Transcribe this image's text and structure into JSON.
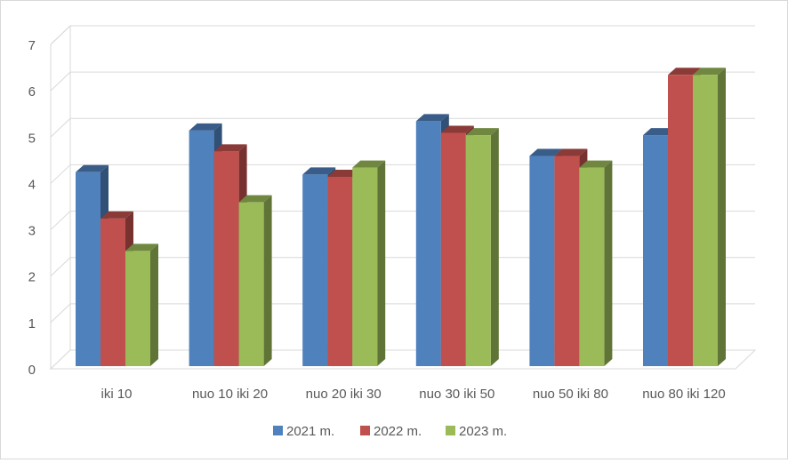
{
  "chart_data": {
    "type": "bar",
    "style": "3d-clustered-column",
    "title": "",
    "xlabel": "",
    "ylabel": "",
    "categories": [
      "iki 10",
      "nuo 10 iki 20",
      "nuo 20 iki 30",
      "nuo 30 iki 50",
      "nuo 50 iki 80",
      "nuo 80 iki 120"
    ],
    "series": [
      {
        "name": "2021 m.",
        "color": "#4f81bd",
        "values": [
          4.3,
          5.2,
          4.25,
          5.4,
          4.65,
          5.1
        ]
      },
      {
        "name": "2022 m.",
        "color": "#c0504d",
        "values": [
          3.3,
          4.75,
          4.2,
          5.15,
          4.65,
          6.4
        ]
      },
      {
        "name": "2023 m.",
        "color": "#9bbb59",
        "values": [
          2.6,
          3.65,
          4.4,
          5.1,
          4.4,
          6.4
        ]
      }
    ],
    "y_ticks": [
      "0",
      "1",
      "2",
      "3",
      "4",
      "5",
      "6",
      "7"
    ],
    "ylim": [
      0,
      7
    ],
    "grid": true,
    "legend_position": "bottom"
  }
}
